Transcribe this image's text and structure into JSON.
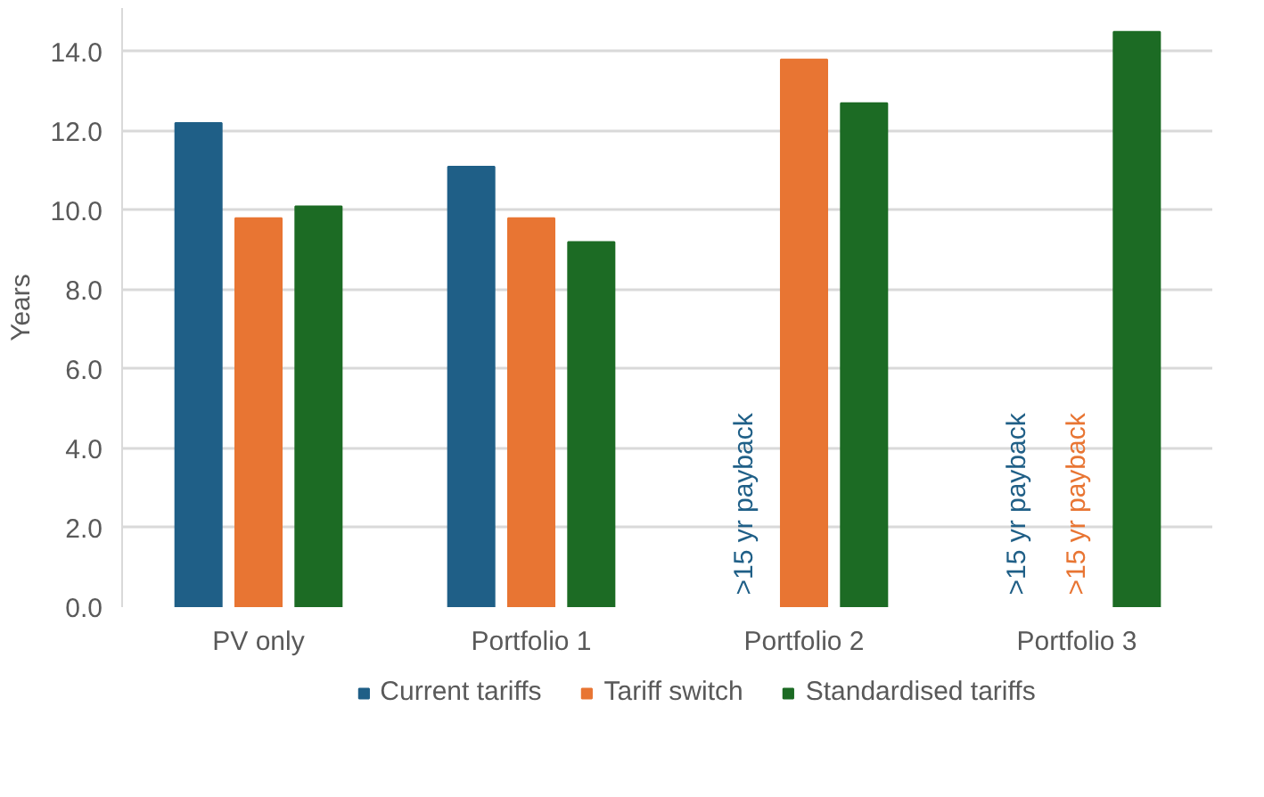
{
  "chart_data": {
    "type": "bar",
    "ylabel": "Years",
    "categories": [
      "PV only",
      "Portfolio 1",
      "Portfolio 2",
      "Portfolio 3"
    ],
    "series": [
      {
        "name": "Current tariffs",
        "color": "#1f5f87",
        "values": [
          12.2,
          11.1,
          null,
          null
        ],
        "value_labels": [
          null,
          null,
          ">15 yr payback",
          ">15 yr payback"
        ]
      },
      {
        "name": "Tariff switch",
        "color": "#e87533",
        "values": [
          9.8,
          9.8,
          13.8,
          null
        ],
        "value_labels": [
          null,
          null,
          null,
          ">15 yr payback"
        ]
      },
      {
        "name": "Standardised tariffs",
        "color": "#1c6b24",
        "values": [
          10.1,
          9.2,
          12.7,
          14.5
        ]
      }
    ],
    "ylim": [
      0,
      15.1
    ],
    "yticks": [
      {
        "value": 0,
        "label": "0.0"
      },
      {
        "value": 2,
        "label": "2.0"
      },
      {
        "value": 4,
        "label": "4.0"
      },
      {
        "value": 6,
        "label": "6.0"
      },
      {
        "value": 8,
        "label": "8.0"
      },
      {
        "value": 10,
        "label": "10.0"
      },
      {
        "value": 12,
        "label": "12.0"
      },
      {
        "value": 14,
        "label": "14.0"
      }
    ],
    "grid": "y",
    "legend": "bottom"
  }
}
